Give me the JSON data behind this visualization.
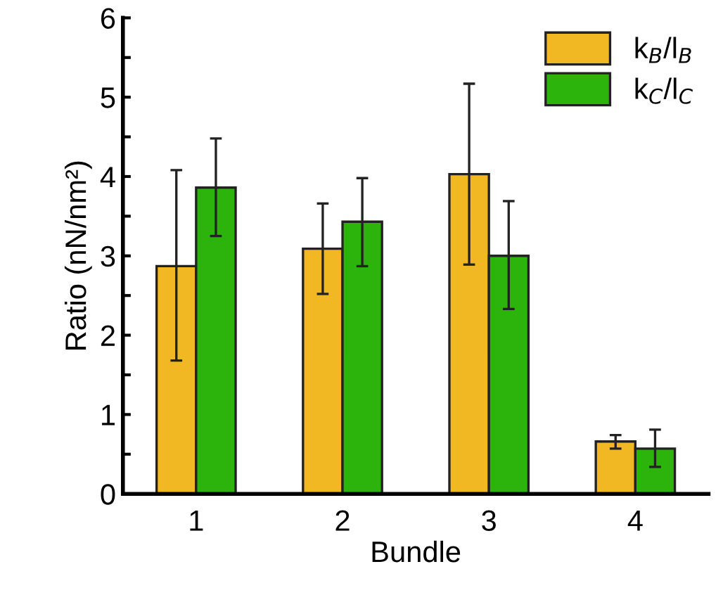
{
  "chart_data": {
    "type": "bar",
    "xlabel": "Bundle",
    "ylabel": "Ratio (nN/nm²)",
    "categories": [
      "1",
      "2",
      "3",
      "4"
    ],
    "series": [
      {
        "name": "k$_{B}$/l$_{B}$",
        "color": "#f2b824",
        "values": [
          2.87,
          3.09,
          4.03,
          0.66
        ],
        "errors": [
          [
            1.68,
            4.08
          ],
          [
            2.52,
            3.66
          ],
          [
            2.89,
            5.17
          ],
          [
            0.57,
            0.74
          ]
        ]
      },
      {
        "name": "k$_{C}$/l$_{C}$",
        "color": "#2db40c",
        "values": [
          3.86,
          3.43,
          3.0,
          0.57
        ],
        "errors": [
          [
            3.25,
            4.48
          ],
          [
            2.87,
            3.98
          ],
          [
            2.33,
            3.69
          ],
          [
            0.34,
            0.81
          ]
        ]
      }
    ],
    "ylim": [
      0,
      6
    ],
    "yticks": [
      0,
      {
        "value": 0.5,
        "label": null
      },
      1,
      {
        "value": 1.5,
        "label": null
      },
      2,
      {
        "value": 2.5,
        "label": null
      },
      3,
      {
        "value": 3.5,
        "label": null
      },
      4,
      {
        "value": 4.5,
        "label": null
      },
      5,
      {
        "value": 5.5,
        "label": null
      },
      6
    ],
    "grid": false,
    "legend": "top right"
  }
}
